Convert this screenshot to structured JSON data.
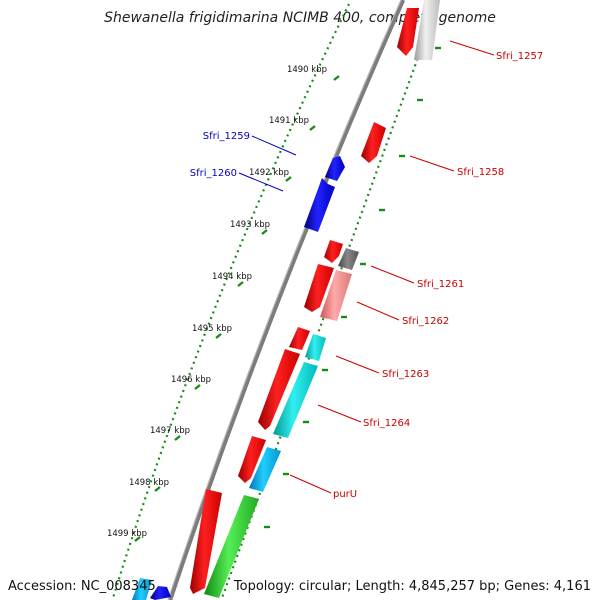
{
  "title": "Shewanella frigidimarina NCIMB 400, complete genome",
  "footer": {
    "accession": "Accession: NC_008345",
    "summary": "Topology: circular; Length: 4,845,257 bp; Genes: 4,161"
  },
  "scale_labels": [
    "1490 kbp",
    "1491 kbp",
    "1492 kbp",
    "1493 kbp",
    "1494 kbp",
    "1495 kbp",
    "1496 kbp",
    "1497 kbp",
    "1498 kbp",
    "1499 kbp"
  ],
  "gene_labels": {
    "left": [
      {
        "name": "Sfri_1259",
        "color": "#0000cc"
      },
      {
        "name": "Sfri_1260",
        "color": "#0000cc"
      }
    ],
    "right": [
      {
        "name": "Sfri_1257",
        "color": "#cc0000"
      },
      {
        "name": "Sfri_1258",
        "color": "#cc0000"
      },
      {
        "name": "Sfri_1261",
        "color": "#cc0000"
      },
      {
        "name": "Sfri_1262",
        "color": "#cc0000"
      },
      {
        "name": "Sfri_1263",
        "color": "#cc0000"
      },
      {
        "name": "Sfri_1264",
        "color": "#cc0000"
      },
      {
        "name": "purU",
        "color": "#cc0000"
      }
    ]
  },
  "colors": {
    "backbone": "#8a8a8a",
    "tick": "#1a8a1a",
    "forward": "#ee1111",
    "reverse": "#1010ee"
  }
}
